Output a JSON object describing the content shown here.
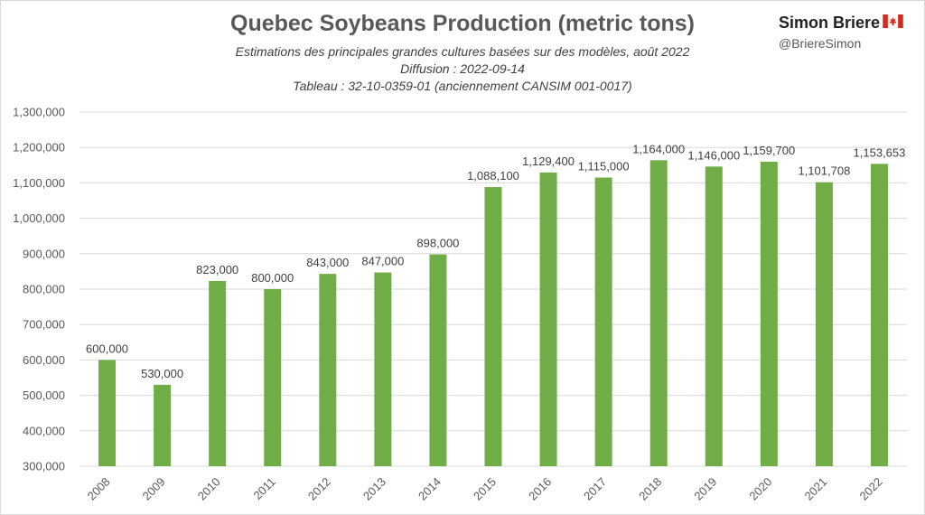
{
  "header": {
    "title": "Quebec Soybeans Production (metric tons)",
    "subtitle1": "Estimations des principales grandes cultures basées sur des modèles, août 2022",
    "subtitle2": "Diffusion : 2022-09-14",
    "subtitle3": "Tableau : 32-10-0359-01 (anciennement CANSIM 001-0017)",
    "author": "Simon Briere",
    "handle": "@BriereSimon",
    "flag_icon": "canada-flag-icon"
  },
  "colors": {
    "bar": "#70ad47",
    "grid": "#d9d9d9",
    "flag_red": "#d52b1e"
  },
  "chart_data": {
    "type": "bar",
    "title": "Quebec Soybeans Production (metric tons)",
    "categories": [
      "2008",
      "2009",
      "2010",
      "2011",
      "2012",
      "2013",
      "2014",
      "2015",
      "2016",
      "2017",
      "2018",
      "2019",
      "2020",
      "2021",
      "2022"
    ],
    "values": [
      600000,
      530000,
      823000,
      800000,
      843000,
      847000,
      898000,
      1088100,
      1129400,
      1115000,
      1164000,
      1146000,
      1159700,
      1101708,
      1153653
    ],
    "data_labels": [
      "600,000",
      "530,000",
      "823,000",
      "800,000",
      "843,000",
      "847,000",
      "898,000",
      "1,088,100",
      "1,129,400",
      "1,115,000",
      "1,164,000",
      "1,146,000",
      "1,159,700",
      "1,101,708",
      "1,153,653"
    ],
    "ylim": [
      300000,
      1300000
    ],
    "y_ticks": [
      300000,
      400000,
      500000,
      600000,
      700000,
      800000,
      900000,
      1000000,
      1100000,
      1200000,
      1300000
    ],
    "y_tick_labels": [
      "300,000",
      "400,000",
      "500,000",
      "600,000",
      "700,000",
      "800,000",
      "900,000",
      "1,000,000",
      "1,100,000",
      "1,200,000",
      "1,300,000"
    ],
    "xlabel": "",
    "ylabel": "",
    "grid": true,
    "legend": "none"
  }
}
